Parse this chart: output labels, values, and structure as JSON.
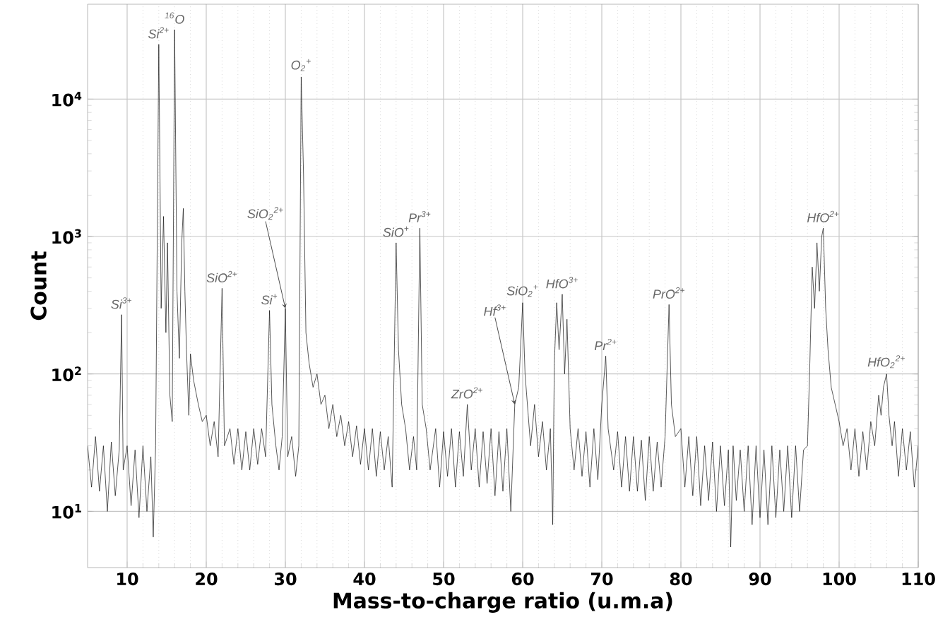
{
  "chart_data": {
    "type": "line",
    "xlabel": "Mass-to-charge ratio (u.m.a)",
    "ylabel": "Count",
    "log": "y",
    "grid": true,
    "color": "#111111",
    "xlim": [
      5,
      110
    ],
    "ylim": [
      3.9,
      49000
    ],
    "xticks": [
      10,
      20,
      30,
      40,
      50,
      60,
      70,
      80,
      90,
      100,
      110
    ],
    "yticks": [
      {
        "value": 10,
        "label": "10$^{1}$"
      },
      {
        "value": 100,
        "label": "10$^{2}$"
      },
      {
        "value": 1000,
        "label": "10$^{3}$"
      },
      {
        "value": 10000,
        "label": "10$^{4}$"
      }
    ],
    "x": [
      5,
      5.5,
      6,
      6.5,
      7,
      7.5,
      8,
      8.5,
      9,
      9.3,
      9.5,
      10,
      10.5,
      11,
      11.5,
      12,
      12.5,
      13,
      13.3,
      13.6,
      14,
      14.3,
      14.6,
      14.9,
      15.1,
      15.4,
      15.7,
      16,
      16.3,
      16.6,
      16.9,
      17.1,
      17.3,
      17.5,
      17.8,
      18,
      18.4,
      19,
      19.5,
      20,
      20.5,
      21,
      21.5,
      22,
      22.3,
      23,
      23.5,
      24,
      24.5,
      25,
      25.5,
      26,
      26.5,
      27,
      27.5,
      28,
      28.3,
      28.8,
      29.2,
      29.6,
      30,
      30.3,
      30.8,
      31.3,
      31.7,
      32,
      32.3,
      32.6,
      33,
      33.5,
      34,
      34.5,
      35,
      35.5,
      36,
      36.5,
      37,
      37.5,
      38,
      38.5,
      39,
      39.5,
      40,
      40.5,
      41,
      41.5,
      42,
      42.5,
      43,
      43.5,
      44,
      44.3,
      44.7,
      45.2,
      45.7,
      46.2,
      46.6,
      47,
      47.3,
      47.8,
      48.3,
      49,
      49.5,
      50,
      50.5,
      51,
      51.5,
      52,
      52.5,
      53,
      53.5,
      54,
      54.5,
      55,
      55.5,
      56,
      56.5,
      57,
      57.5,
      58,
      58.5,
      59,
      59.5,
      60,
      60.3,
      60.7,
      61,
      61.5,
      62,
      62.5,
      63,
      63.5,
      63.8,
      64,
      64.3,
      64.6,
      65,
      65.3,
      65.6,
      66,
      66.5,
      67,
      67.5,
      68,
      68.5,
      69,
      69.5,
      70,
      70.5,
      70.8,
      71.5,
      72,
      72.5,
      73,
      73.5,
      74,
      74.5,
      75,
      75.5,
      76,
      76.5,
      77,
      77.5,
      78,
      78.5,
      78.8,
      79.3,
      80,
      80.5,
      81,
      81.5,
      82,
      82.5,
      83,
      83.5,
      84,
      84.5,
      85,
      85.5,
      86,
      86.3,
      86.6,
      87,
      87.5,
      88,
      88.5,
      89,
      89.5,
      90,
      90.5,
      91,
      91.5,
      92,
      92.5,
      93,
      93.5,
      94,
      94.5,
      95,
      95.5,
      96,
      96.3,
      96.6,
      96.9,
      97.2,
      97.5,
      97.8,
      98,
      98.3,
      98.6,
      99,
      99.5,
      100,
      100.5,
      101,
      101.5,
      102,
      102.5,
      103,
      103.5,
      104,
      104.5,
      105,
      105.3,
      105.6,
      106,
      106.3,
      106.7,
      107,
      107.5,
      108,
      108.5,
      109,
      109.5,
      110
    ],
    "values": [
      30,
      15,
      35,
      14,
      30,
      10,
      32,
      13,
      28,
      270,
      20,
      30,
      11,
      28,
      9,
      30,
      10,
      25,
      6.5,
      30,
      25000,
      300,
      1400,
      200,
      900,
      70,
      45,
      32000,
      400,
      130,
      900,
      1600,
      400,
      150,
      50,
      140,
      90,
      60,
      45,
      50,
      30,
      45,
      25,
      420,
      30,
      40,
      22,
      40,
      20,
      38,
      20,
      40,
      22,
      40,
      25,
      290,
      60,
      30,
      20,
      35,
      300,
      25,
      35,
      18,
      30,
      14500,
      2800,
      200,
      120,
      80,
      100,
      60,
      70,
      40,
      60,
      35,
      50,
      30,
      45,
      25,
      42,
      22,
      40,
      20,
      40,
      18,
      38,
      20,
      35,
      15,
      900,
      150,
      60,
      40,
      20,
      35,
      20,
      1150,
      60,
      40,
      20,
      40,
      15,
      38,
      18,
      40,
      15,
      38,
      18,
      60,
      20,
      40,
      15,
      38,
      16,
      40,
      13,
      38,
      14,
      40,
      10,
      60,
      80,
      330,
      100,
      50,
      30,
      60,
      25,
      45,
      20,
      40,
      8,
      120,
      330,
      150,
      380,
      100,
      250,
      40,
      20,
      40,
      18,
      38,
      15,
      40,
      17,
      60,
      135,
      40,
      20,
      38,
      15,
      35,
      14,
      35,
      14,
      33,
      12,
      35,
      14,
      32,
      15,
      35,
      320,
      60,
      35,
      40,
      15,
      35,
      13,
      35,
      11,
      30,
      12,
      32,
      10,
      30,
      11,
      28,
      5.5,
      30,
      12,
      28,
      10,
      30,
      8,
      30,
      9,
      28,
      8,
      30,
      9,
      28,
      10,
      30,
      9,
      30,
      10,
      28,
      30,
      120,
      600,
      300,
      900,
      400,
      1000,
      1150,
      300,
      150,
      80,
      60,
      45,
      30,
      40,
      20,
      40,
      18,
      38,
      20,
      45,
      30,
      70,
      50,
      80,
      100,
      50,
      30,
      45,
      18,
      40,
      20,
      38,
      15,
      30
    ],
    "annotations": [
      {
        "text": "Si$^{3+}$",
        "x": 9.3,
        "y": 270
      },
      {
        "text": "Si$^{2+}$",
        "x": 14,
        "y": 25000
      },
      {
        "text": "$^{16}$O",
        "x": 16,
        "y": 32000
      },
      {
        "text": "SiO$^{2+}$",
        "x": 22,
        "y": 420
      },
      {
        "text": "Si$^{+}$",
        "x": 28,
        "y": 290
      },
      {
        "text": "SiO$_{2}$$^{2+}$",
        "x": 30,
        "y": 300
      },
      {
        "text": "O$_{2}$$^{+}$",
        "x": 32,
        "y": 14500
      },
      {
        "text": "SiO$^{+}$",
        "x": 44,
        "y": 900
      },
      {
        "text": "Pr$^{3+}$",
        "x": 47,
        "y": 1150
      },
      {
        "text": "ZrO$^{2+}$",
        "x": 53,
        "y": 60
      },
      {
        "text": "Hf$^{3+}$",
        "x": 59,
        "y": 60
      },
      {
        "text": "SiO$_{2}$$^{+}$",
        "x": 60,
        "y": 330
      },
      {
        "text": "HfO$^{3+}$",
        "x": 65,
        "y": 380
      },
      {
        "text": "Pr$^{2+}$",
        "x": 70.5,
        "y": 135
      },
      {
        "text": "PrO$^{2+}$",
        "x": 78.5,
        "y": 320
      },
      {
        "text": "HfO$^{2+}$",
        "x": 98,
        "y": 1150
      },
      {
        "text": "HfO$_{2}$$^{2+}$",
        "x": 106,
        "y": 100
      }
    ]
  }
}
